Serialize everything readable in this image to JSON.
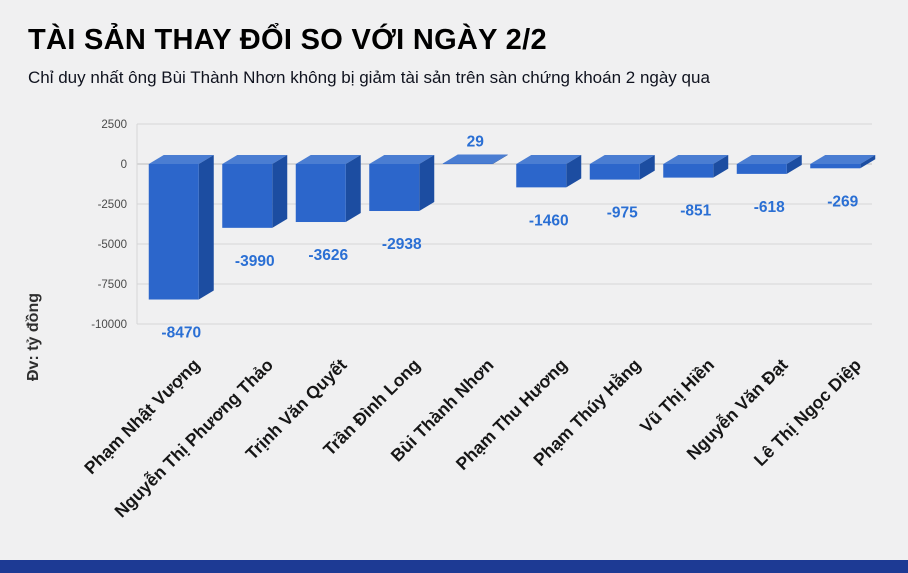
{
  "page": {
    "background": "#f0f0f1",
    "footer_bar_color": "#1d3a94"
  },
  "chart_data": {
    "type": "bar",
    "style": "3d-columns",
    "title": "TÀI SẢN THAY ĐỔI SO VỚI NGÀY 2/2",
    "subtitle": "Chỉ duy nhất ông Bùi Thành Nhơn không bị giảm tài sản trên sàn chứng khoán 2 ngày qua",
    "ylabel": "Đv: tỷ đồng",
    "categories": [
      "Phạm Nhật Vượng",
      "Nguyễn Thị Phương Thảo",
      "Trịnh Văn Quyết",
      "Trần Đình Long",
      "Bùi Thành Nhơn",
      "Phạm Thu Hương",
      "Phạm Thúy Hằng",
      "Vũ Thị Hiền",
      "Nguyễn Văn Đạt",
      "Lê Thị Ngọc Diệp"
    ],
    "values": [
      -8470,
      -3990,
      -3626,
      -2938,
      29,
      -1460,
      -975,
      -851,
      -618,
      -269
    ],
    "yticks": [
      2500,
      0,
      -2500,
      -5000,
      -7500,
      -10000
    ],
    "ylim": [
      -10000,
      2500
    ],
    "grid": true,
    "legend": "none",
    "colors": {
      "bar_front": "#2c66cb",
      "bar_side": "#1c4da1",
      "bar_top": "#4a7dd2",
      "value_label": "#2a6fd4",
      "gridline": "#d6d6d6",
      "zero_line": "#bdbdbd",
      "tick_label": "#4a4a4a",
      "category_label": "#161616",
      "title": "#000000",
      "subtitle": "#10131f"
    }
  }
}
